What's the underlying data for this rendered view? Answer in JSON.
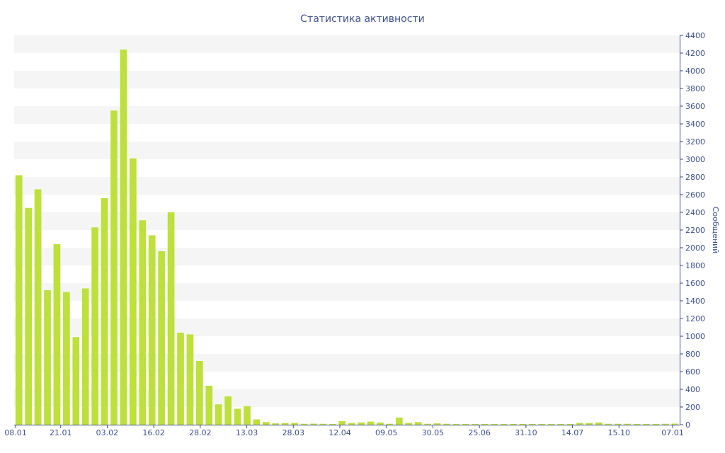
{
  "chart_data": {
    "type": "bar",
    "title": "Статистика активности",
    "xlabel": "",
    "ylabel": "Сообщений",
    "ylim": [
      0,
      4400
    ],
    "yticks": [
      0,
      200,
      400,
      600,
      800,
      1000,
      1200,
      1400,
      1600,
      1800,
      2000,
      2200,
      2400,
      2600,
      2800,
      3000,
      3200,
      3400,
      3600,
      3800,
      4000,
      4200,
      4400
    ],
    "x_tick_labels": [
      "08.01",
      "21.01",
      "03.02",
      "16.02",
      "28.02",
      "13.03",
      "28.03",
      "12.04",
      "09.05",
      "30.05",
      "25.06",
      "31.10",
      "14.07",
      "15.10",
      "07.01"
    ],
    "grid": "horizontal alternating bands",
    "y_axis_side": "right",
    "values": [
      2820,
      2450,
      2660,
      1520,
      2040,
      1500,
      990,
      1540,
      2230,
      2560,
      3550,
      4240,
      3010,
      2310,
      2140,
      1960,
      2400,
      1040,
      1020,
      720,
      440,
      230,
      320,
      180,
      210,
      60,
      30,
      15,
      20,
      20,
      10,
      12,
      10,
      8,
      40,
      20,
      25,
      35,
      25,
      10,
      80,
      20,
      30,
      10,
      15,
      10,
      8,
      8,
      8,
      8,
      8,
      8,
      8,
      8,
      8,
      8,
      8,
      8,
      8,
      20,
      20,
      25,
      10,
      10,
      10,
      8,
      8,
      8,
      10,
      12
    ],
    "colors": {
      "bar": "#bde03a",
      "band": "#f5f5f5",
      "text": "#3d4f8a",
      "axis": "#3d4f8a"
    }
  }
}
